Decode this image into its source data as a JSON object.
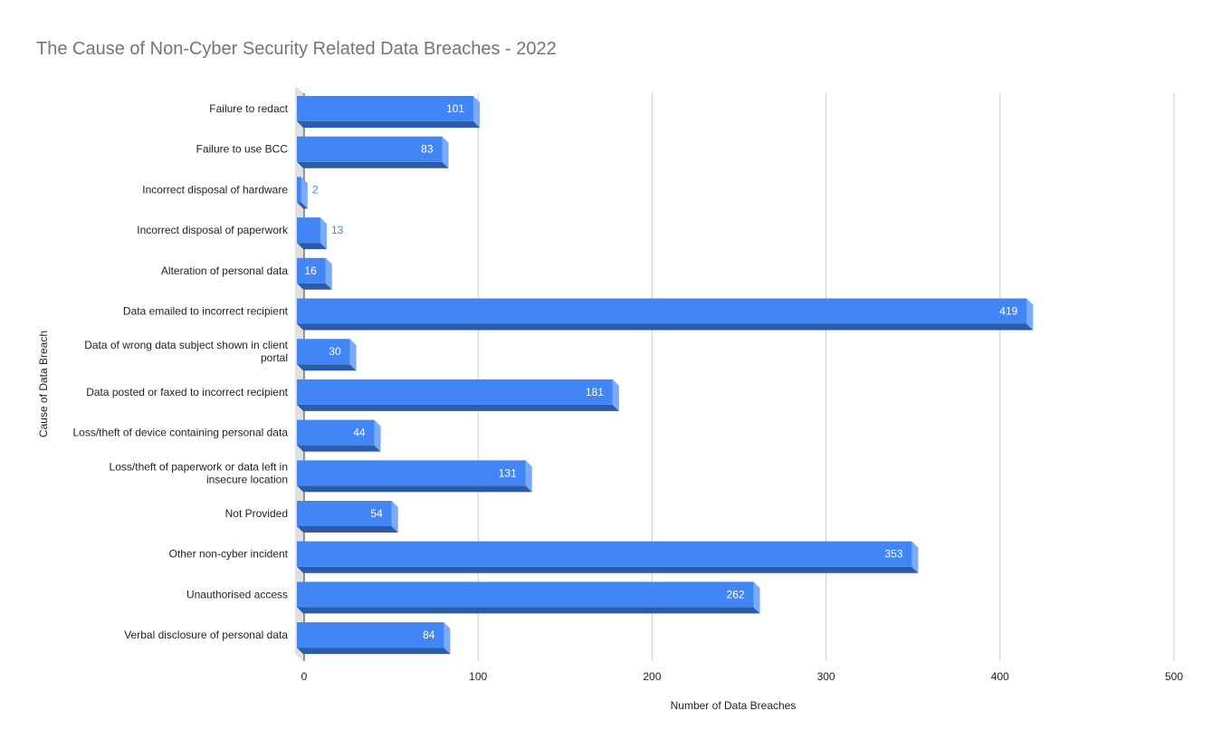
{
  "chart_data": {
    "type": "bar",
    "orientation": "horizontal",
    "style": "3d",
    "title": "The Cause of Non-Cyber Security Related Data Breaches - 2022",
    "xlabel": "Number of Data Breaches",
    "ylabel": "Cause of Data Breach",
    "categories": [
      [
        "Failure to redact"
      ],
      [
        "Failure to use BCC"
      ],
      [
        "Incorrect disposal of hardware"
      ],
      [
        "Incorrect disposal of paperwork"
      ],
      [
        "Alteration of personal data"
      ],
      [
        "Data emailed to incorrect recipient"
      ],
      [
        "Data of wrong data subject shown in client",
        "portal"
      ],
      [
        "Data posted or faxed to incorrect recipient"
      ],
      [
        "Loss/theft of device containing personal data"
      ],
      [
        "Loss/theft of paperwork or data left in",
        "insecure location"
      ],
      [
        "Not Provided"
      ],
      [
        "Other non-cyber incident"
      ],
      [
        "Unauthorised access"
      ],
      [
        "Verbal disclosure of personal data"
      ]
    ],
    "values": [
      101,
      83,
      2,
      13,
      16,
      419,
      30,
      181,
      44,
      131,
      54,
      353,
      262,
      84
    ],
    "xlim": [
      0,
      500
    ],
    "xticks": [
      0,
      100,
      200,
      300,
      400,
      500
    ],
    "grid": true,
    "legend": "none",
    "colors": {
      "bar_front": "#4285f4",
      "bar_top": "#2c5ca8",
      "bar_side": "#7aaaf8",
      "wall": "#e0e0e0",
      "grid": "#cccccc",
      "label_inside": "#ffffff",
      "label_outside": "#4285f4"
    }
  }
}
